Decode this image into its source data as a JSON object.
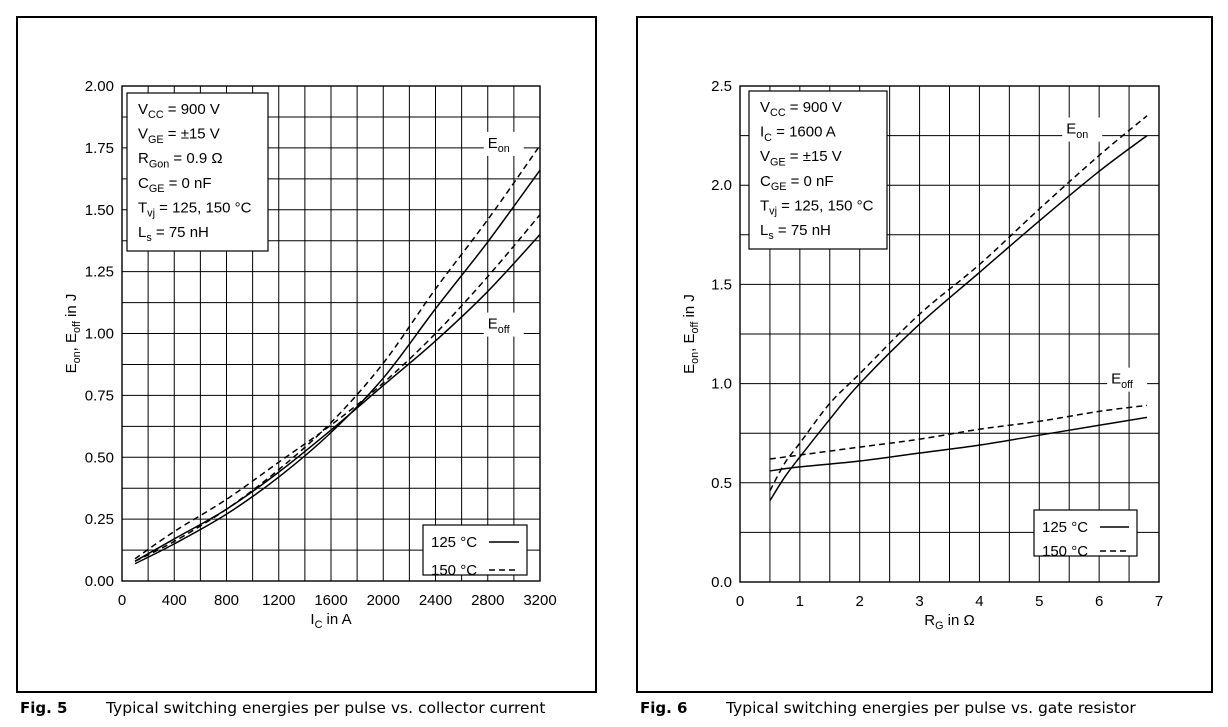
{
  "captions": {
    "fig5_label": "Fig. 5",
    "fig5_text": "Typical switching energies per pulse vs. collector current",
    "fig6_label": "Fig. 6",
    "fig6_text": "Typical switching energies per pulse vs. gate resistor"
  },
  "chart_data": [
    {
      "type": "line",
      "title": "",
      "xlabel": {
        "main": "I",
        "sub": "C",
        "rest": " in A"
      },
      "ylabel": {
        "parts": [
          [
            "E",
            ""
          ],
          [
            "on",
            "sub"
          ],
          [
            ", E",
            ""
          ],
          [
            "off",
            "sub"
          ],
          [
            " in J",
            ""
          ]
        ]
      },
      "xlim": [
        0,
        3200
      ],
      "ylim": [
        0,
        2.0
      ],
      "xticks": [
        0,
        400,
        800,
        1200,
        1600,
        2000,
        2400,
        2800,
        3200
      ],
      "xtick_labels": [
        "0",
        "400",
        "800",
        "1200",
        "1600",
        "2000",
        "2400",
        "2800",
        "3200"
      ],
      "yticks": [
        0,
        0.25,
        0.5,
        0.75,
        1.0,
        1.25,
        1.5,
        1.75,
        2.0
      ],
      "ytick_labels": [
        "0.00",
        "0.25",
        "0.50",
        "0.75",
        "1.00",
        "1.25",
        "1.50",
        "1.75",
        "2.00"
      ],
      "grid": true,
      "conditions": [
        [
          [
            "V",
            ""
          ],
          [
            "CC",
            "sub"
          ],
          [
            " = 900 V",
            ""
          ]
        ],
        [
          [
            "V",
            ""
          ],
          [
            "GE",
            "sub"
          ],
          [
            " = ±15 V",
            ""
          ]
        ],
        [
          [
            "R",
            ""
          ],
          [
            "Gon",
            "sub"
          ],
          [
            " = 0.9 Ω",
            ""
          ]
        ],
        [
          [
            "C",
            ""
          ],
          [
            "GE",
            "sub"
          ],
          [
            " = 0 nF",
            ""
          ]
        ],
        [
          [
            "T",
            ""
          ],
          [
            "vj",
            "sub"
          ],
          [
            " = 125, 150 °C",
            ""
          ]
        ],
        [
          [
            "L",
            ""
          ],
          [
            "s",
            "sub"
          ],
          [
            " = 75 nH",
            ""
          ]
        ]
      ],
      "legend": {
        "placement": "bottom-right",
        "entries": [
          "125 °C",
          "150 °C"
        ],
        "styles": [
          "solid",
          "dashed"
        ]
      },
      "curve_labels": [
        {
          "main": "E",
          "sub": "on",
          "at": [
            2800,
            1.75
          ]
        },
        {
          "main": "E",
          "sub": "off",
          "at": [
            2800,
            1.02
          ]
        }
      ],
      "series": [
        {
          "curve": "Eon",
          "temp": "125",
          "style": "solid",
          "x": [
            100,
            400,
            800,
            1200,
            1600,
            2000,
            2400,
            2800,
            3200
          ],
          "y": [
            0.07,
            0.15,
            0.27,
            0.42,
            0.6,
            0.82,
            1.1,
            1.37,
            1.66
          ]
        },
        {
          "curve": "Eon",
          "temp": "150",
          "style": "dashed",
          "x": [
            100,
            400,
            800,
            1200,
            1600,
            2000,
            2400,
            2800,
            3200
          ],
          "y": [
            0.08,
            0.16,
            0.29,
            0.45,
            0.64,
            0.88,
            1.18,
            1.46,
            1.76
          ]
        },
        {
          "curve": "Eoff",
          "temp": "125",
          "style": "solid",
          "x": [
            100,
            400,
            800,
            1200,
            1600,
            2000,
            2400,
            2800,
            3200
          ],
          "y": [
            0.08,
            0.17,
            0.29,
            0.44,
            0.61,
            0.79,
            0.97,
            1.17,
            1.4
          ]
        },
        {
          "curve": "Eoff",
          "temp": "150",
          "style": "dashed",
          "x": [
            100,
            400,
            800,
            1200,
            1600,
            2000,
            2400,
            2800,
            3200
          ],
          "y": [
            0.09,
            0.2,
            0.33,
            0.48,
            0.63,
            0.8,
            1.0,
            1.23,
            1.48
          ]
        }
      ]
    },
    {
      "type": "line",
      "title": "",
      "xlabel": {
        "main": "R",
        "sub": "G",
        "rest": " in Ω"
      },
      "ylabel": {
        "parts": [
          [
            "E",
            ""
          ],
          [
            "on",
            "sub"
          ],
          [
            ", E",
            ""
          ],
          [
            "off",
            "sub"
          ],
          [
            " in J",
            ""
          ]
        ]
      },
      "xlim": [
        0,
        7
      ],
      "ylim": [
        0,
        2.5
      ],
      "xticks": [
        0,
        1,
        2,
        3,
        4,
        5,
        6,
        7
      ],
      "xtick_labels": [
        "0",
        "1",
        "2",
        "3",
        "4",
        "5",
        "6",
        "7"
      ],
      "yticks": [
        0,
        0.5,
        1.0,
        1.5,
        2.0,
        2.5
      ],
      "ytick_labels": [
        "0.0",
        "0.5",
        "1.0",
        "1.5",
        "2.0",
        "2.5"
      ],
      "grid": true,
      "conditions": [
        [
          [
            "V",
            ""
          ],
          [
            "CC",
            "sub"
          ],
          [
            " = 900 V",
            ""
          ]
        ],
        [
          [
            "I",
            ""
          ],
          [
            "C",
            "sub"
          ],
          [
            " = 1600 A",
            ""
          ]
        ],
        [
          [
            "V",
            ""
          ],
          [
            "GE",
            "sub"
          ],
          [
            " = ±15 V",
            ""
          ]
        ],
        [
          [
            "C",
            ""
          ],
          [
            "GE",
            "sub"
          ],
          [
            " = 0 nF",
            ""
          ]
        ],
        [
          [
            "T",
            ""
          ],
          [
            "vj",
            "sub"
          ],
          [
            " = 125, 150 °C",
            ""
          ]
        ],
        [
          [
            "L",
            ""
          ],
          [
            "s",
            "sub"
          ],
          [
            " = 75 nH",
            ""
          ]
        ]
      ],
      "legend": {
        "placement": "bottom-right",
        "entries": [
          "125 °C",
          "150 °C"
        ],
        "styles": [
          "solid",
          "dashed"
        ]
      },
      "curve_labels": [
        {
          "main": "E",
          "sub": "on",
          "at": [
            5.45,
            2.26
          ]
        },
        {
          "main": "E",
          "sub": "off",
          "at": [
            6.2,
            1.0
          ]
        }
      ],
      "series": [
        {
          "curve": "Eon",
          "temp": "125",
          "style": "solid",
          "x": [
            0.5,
            0.75,
            1.0,
            1.5,
            2.0,
            3.0,
            4.0,
            5.0,
            6.0,
            6.8
          ],
          "y": [
            0.41,
            0.53,
            0.63,
            0.82,
            1.0,
            1.3,
            1.56,
            1.82,
            2.07,
            2.25
          ]
        },
        {
          "curve": "Eon",
          "temp": "150",
          "style": "dashed",
          "x": [
            0.5,
            0.75,
            1.0,
            1.5,
            2.0,
            3.0,
            4.0,
            5.0,
            6.0,
            6.8
          ],
          "y": [
            0.46,
            0.6,
            0.7,
            0.9,
            1.05,
            1.35,
            1.6,
            1.88,
            2.15,
            2.35
          ]
        },
        {
          "curve": "Eoff",
          "temp": "125",
          "style": "solid",
          "x": [
            0.5,
            1.0,
            2.0,
            3.0,
            4.0,
            5.0,
            6.0,
            6.8
          ],
          "y": [
            0.56,
            0.58,
            0.61,
            0.65,
            0.69,
            0.74,
            0.79,
            0.83
          ]
        },
        {
          "curve": "Eoff",
          "temp": "150",
          "style": "dashed",
          "x": [
            0.5,
            1.0,
            2.0,
            3.0,
            4.0,
            5.0,
            6.0,
            6.8
          ],
          "y": [
            0.62,
            0.64,
            0.68,
            0.72,
            0.77,
            0.81,
            0.86,
            0.89
          ]
        }
      ]
    }
  ]
}
